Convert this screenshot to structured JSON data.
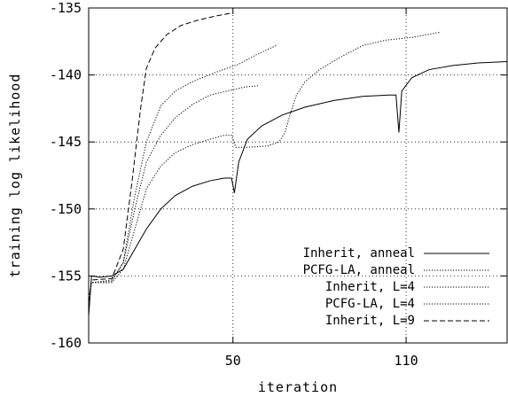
{
  "chart_data": {
    "type": "line",
    "xlabel": "iteration",
    "ylabel": "training log likelihood",
    "xlim": [
      0,
      145
    ],
    "ylim": [
      -160,
      -135
    ],
    "xticks": [
      50,
      110
    ],
    "yticks": [
      -135,
      -140,
      -145,
      -150,
      -155,
      -160
    ],
    "grid": true,
    "legend_position": "bottom-right",
    "series": [
      {
        "name": "Inherit, anneal",
        "style": "solid",
        "color": "#000000",
        "points": [
          [
            0,
            -158
          ],
          [
            1,
            -155
          ],
          [
            4,
            -155.1
          ],
          [
            8,
            -155
          ],
          [
            12,
            -154.5
          ],
          [
            16,
            -153
          ],
          [
            20,
            -151.5
          ],
          [
            25,
            -150
          ],
          [
            30,
            -149
          ],
          [
            36,
            -148.3
          ],
          [
            42,
            -147.9
          ],
          [
            47,
            -147.7
          ],
          [
            49.5,
            -147.7
          ],
          [
            50.5,
            -148.8
          ],
          [
            52,
            -146.5
          ],
          [
            55,
            -144.8
          ],
          [
            60,
            -143.8
          ],
          [
            67,
            -143
          ],
          [
            75,
            -142.4
          ],
          [
            85,
            -141.9
          ],
          [
            95,
            -141.6
          ],
          [
            104,
            -141.5
          ],
          [
            106.5,
            -141.5
          ],
          [
            107.5,
            -144.3
          ],
          [
            108.5,
            -141.2
          ],
          [
            112,
            -140.2
          ],
          [
            118,
            -139.6
          ],
          [
            126,
            -139.3
          ],
          [
            135,
            -139.1
          ],
          [
            145,
            -139
          ]
        ]
      },
      {
        "name": "PCFG-LA, anneal",
        "style": "dotted",
        "color": "#000000",
        "points": [
          [
            0,
            -157
          ],
          [
            1,
            -155.5
          ],
          [
            8,
            -155.5
          ],
          [
            12,
            -154.5
          ],
          [
            16,
            -151.5
          ],
          [
            20,
            -148.5
          ],
          [
            25,
            -146.8
          ],
          [
            30,
            -145.8
          ],
          [
            36,
            -145.2
          ],
          [
            42,
            -144.8
          ],
          [
            47,
            -144.5
          ],
          [
            49.5,
            -144.5
          ],
          [
            51,
            -145.4
          ],
          [
            55,
            -145.4
          ],
          [
            62,
            -145.3
          ],
          [
            66,
            -145
          ],
          [
            68,
            -144.3
          ],
          [
            70,
            -142.8
          ],
          [
            72,
            -141.5
          ],
          [
            75,
            -140.5
          ],
          [
            80,
            -139.6
          ],
          [
            87,
            -138.7
          ],
          [
            95,
            -137.8
          ],
          [
            103,
            -137.4
          ],
          [
            112,
            -137.2
          ],
          [
            122,
            -136.8
          ]
        ]
      },
      {
        "name": "Inherit, L=4",
        "style": "dotted",
        "color": "#000000",
        "points": [
          [
            0,
            -157
          ],
          [
            1,
            -155.5
          ],
          [
            8,
            -155.4
          ],
          [
            12,
            -154
          ],
          [
            16,
            -150
          ],
          [
            20,
            -146.5
          ],
          [
            25,
            -144.5
          ],
          [
            30,
            -143.2
          ],
          [
            36,
            -142.2
          ],
          [
            42,
            -141.5
          ],
          [
            48,
            -141.2
          ],
          [
            54,
            -140.9
          ],
          [
            59,
            -140.8
          ]
        ]
      },
      {
        "name": "PCFG-LA, L=4",
        "style": "dotted",
        "color": "#000000",
        "points": [
          [
            0,
            -157
          ],
          [
            1,
            -155.5
          ],
          [
            8,
            -155.3
          ],
          [
            12,
            -154
          ],
          [
            16,
            -149
          ],
          [
            20,
            -145
          ],
          [
            25,
            -142.3
          ],
          [
            30,
            -141.2
          ],
          [
            36,
            -140.5
          ],
          [
            44,
            -139.8
          ],
          [
            52,
            -139.2
          ],
          [
            58,
            -138.5
          ],
          [
            65,
            -137.8
          ]
        ]
      },
      {
        "name": "Inherit, L=9",
        "style": "dashed",
        "color": "#000000",
        "points": [
          [
            0,
            -157
          ],
          [
            1,
            -155.3
          ],
          [
            8,
            -155.2
          ],
          [
            12,
            -153
          ],
          [
            15,
            -148
          ],
          [
            18,
            -142.5
          ],
          [
            20,
            -139.5
          ],
          [
            23,
            -138
          ],
          [
            27,
            -137
          ],
          [
            32,
            -136.3
          ],
          [
            38,
            -135.9
          ],
          [
            44,
            -135.6
          ],
          [
            49,
            -135.4
          ]
        ]
      }
    ]
  }
}
